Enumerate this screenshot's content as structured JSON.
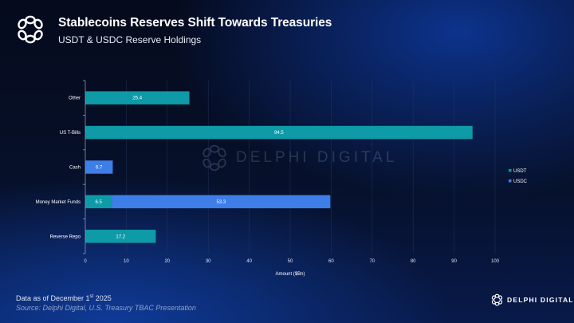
{
  "header": {
    "title": "Stablecoins Reserves Shift Towards Treasuries",
    "subtitle": "USDT & USDC Reserve Holdings",
    "logo_icon": "delphi-knot-icon"
  },
  "chart_data": {
    "type": "bar",
    "orientation": "horizontal",
    "stacked": true,
    "categories": [
      "Other",
      "US T-Bills",
      "Cash",
      "Money Market Funds",
      "Reverse Repo"
    ],
    "series": [
      {
        "name": "USDT",
        "color": "#0e9aa7",
        "values": [
          25.4,
          94.5,
          null,
          6.5,
          17.2
        ]
      },
      {
        "name": "USDC",
        "color": "#3e7ee8",
        "values": [
          null,
          null,
          6.7,
          53.3,
          null
        ]
      }
    ],
    "xlabel": "Amount ($Bn)",
    "ylabel": "",
    "xlim": [
      0,
      100
    ],
    "xticks": [
      0,
      10,
      20,
      30,
      40,
      50,
      60,
      70,
      80,
      90,
      100
    ],
    "grid": true,
    "legend": {
      "position": "right",
      "entries": [
        "USDT",
        "USDC"
      ]
    },
    "data_labels": true
  },
  "watermark": {
    "text": "DELPHI DIGITAL"
  },
  "footer": {
    "date_prefix": "Data as of December 1",
    "date_sup": "st",
    "date_suffix": " 2025",
    "source": "Source: Delphi Digital, U.S. Treasury TBAC Presentation",
    "brand": "DELPHI DIGITAL"
  }
}
